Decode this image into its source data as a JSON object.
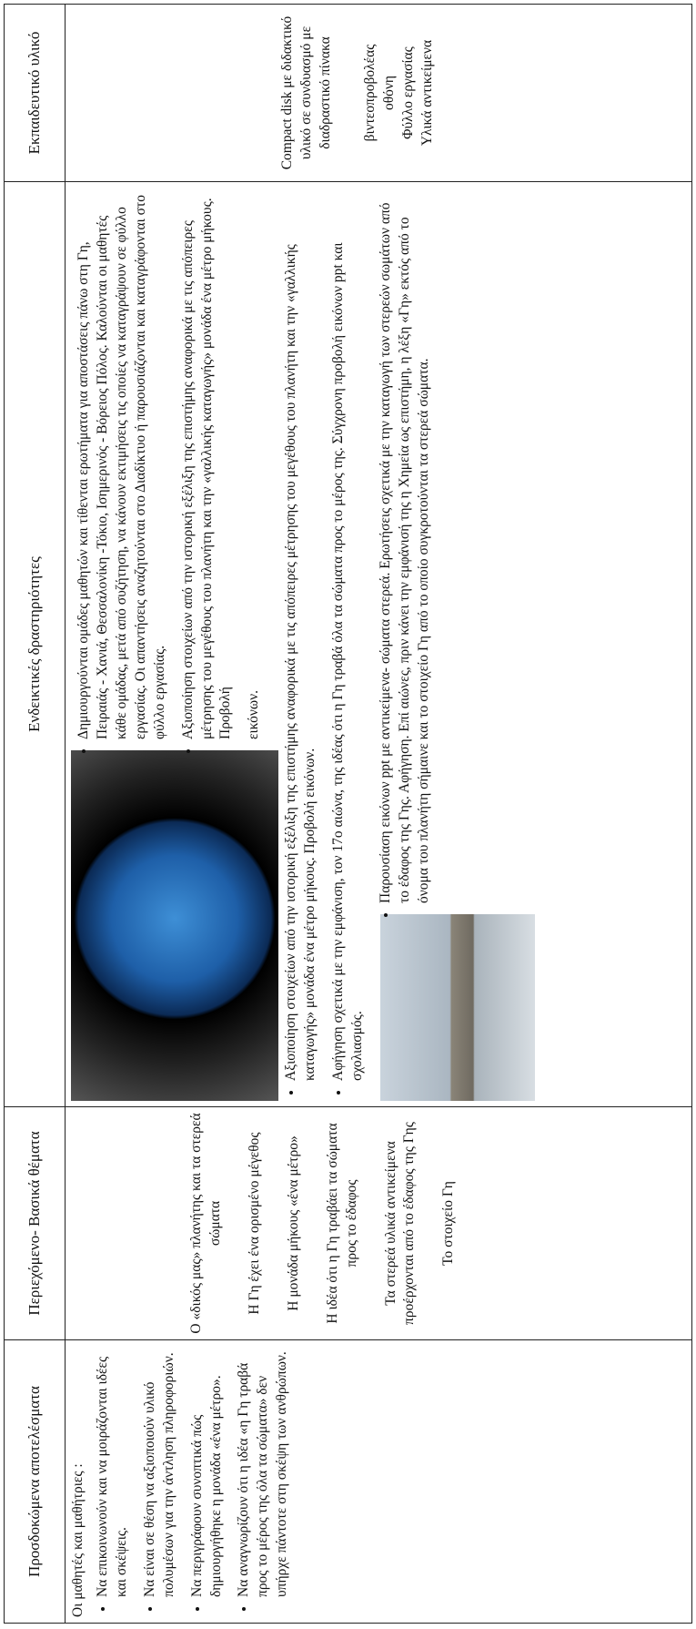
{
  "table": {
    "headers": [
      "Προσδοκώμενα αποτελέσματα",
      "Περιεχόμενο- Βασικά θέματα",
      "Ενδεικτικές δραστηριότητες",
      "Εκπαιδευτικό υλικό"
    ],
    "expected_results": {
      "intro": "Οι μαθητές και μαθήτριες :",
      "items": [
        "Να επικοινωνούν και να μοιράζονται ιδέες και σκέψεις.",
        "Να είναι σε θέση να αξιοποιούν υλικό πολυμέσων για την άντληση πληροφοριών.",
        "Να περιγράφουν συνοπτικά πώς δημιουργήθηκε η μονάδα «ένα μέτρο».",
        "Να αναγνωρίζουν ότι η ιδέα «η Γη τραβά προς το μέρος της όλα τα σώματα» δεν υπήρχε πάντοτε στη σκέψη των ανθρώπων."
      ]
    },
    "content_topics": [
      "Ο «δικός μας» πλανήτης και τα στερεά σώματα",
      "Η Γη έχει ένα ορισμένο μέγεθος",
      "Η μονάδα μήκους «ένα μέτρο»",
      "Η ιδέα ότι η Γη τραβάει τα σώματα προς το έδαφος",
      "Τα στερεά υλικά αντικείμενα προέρχονται από το έδαφος της Γης",
      "Το στοιχείο Γη"
    ],
    "activities": {
      "image_caption": "εικόνων.",
      "items": [
        "Δημιουργούνται ομάδες μαθητών και τίθενται ερωτήματα για αποστάσεις πάνω στη Γη, Πειραιάς - Χανιά, Θεσσαλονίκη -Τόκιο, Ισημερινός - Βόρειος Πόλος. Καλούνται οι μαθητές κάθε ομάδας, μετά από συζήτηση, να κάνουν εκτιμήσεις τις οποίες να καταγράψουν σε φύλλο εργασίας. Οι απαντήσεις αναζητούνται στο Διαδίκτυο ή παρουσιάζονται και καταγράφονται στο φύλλο εργασίας.",
        "Αξιοποίηση στοιχείων από την ιστορική εξέλιξη της επιστήμης αναφορικά με τις απόπειρες μέτρησης του μεγέθους του πλανήτη και την «γαλλικής καταγωγής» μονάδα ένα μέτρο μήκους. Προβολή",
        "Αξιοποίηση στοιχείων από την ιστορική εξέλιξη της επιστήμης αναφορικά με τις απόπειρες μέτρησης του μεγέθους του πλανήτη και την «γαλλικής καταγωγής» μονάδα ένα μέτρο μήκους. Προβολή εικόνων.",
        "Αφήγηση σχετικά με την εμφάνιση, τον 17ο αιώνα, της ιδέας ότι η Γη τραβά όλα τα σώματα προς το μέρος της. Σύγχρονη προβολή εικόνων ppt και σχολιασμός.",
        "Παρουσίαση εικόνων ppt με αντικείμενα- σώματα στερεά. Ερωτήσεις σχετικά με την καταγωγή των στερεών σωμάτων από το έδαφος της Γης. Αφήγηση. Επί αιώνες, πριν κάνει την εμφάνισή της η Χημεία ως επιστήμη, η λέξη «Γη» εκτός από το όνομα του πλανήτη σήμαινε και το στοιχείο Γη από το οποίο συγκροτούνται τα στερεά σώματα."
      ]
    },
    "materials": [
      "Compact disk με διδακτικό υλικό σε συνδυασμό με διαδραστικό πίνακα",
      "βιντεοπροβολέας",
      "οθόνη",
      "Φύλλο εργασίας",
      "Υλικά αντικείμενα"
    ]
  }
}
